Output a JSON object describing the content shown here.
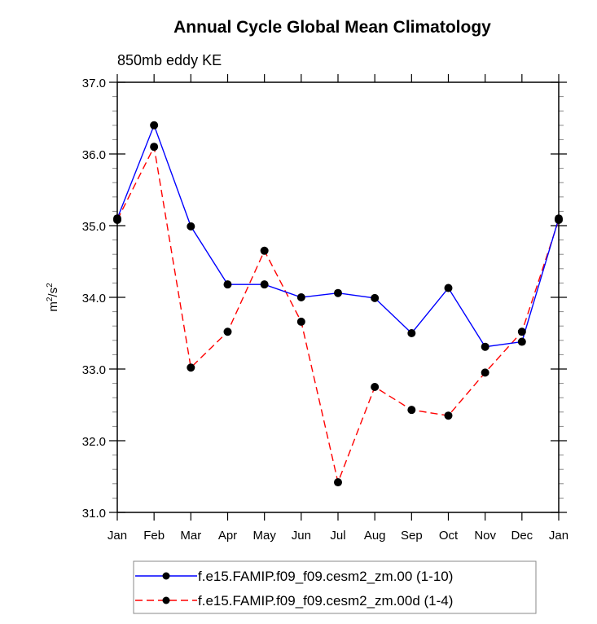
{
  "chart_data": {
    "type": "line",
    "title": "Annual Cycle Global Mean Climatology",
    "subtitle": "850mb eddy KE",
    "xlabel": "",
    "ylabel": "m2/s2",
    "ylabel_parts": {
      "base1": "m",
      "sup1": "2",
      "mid": "/s",
      "sup2": "2"
    },
    "categories": [
      "Jan",
      "Feb",
      "Mar",
      "Apr",
      "May",
      "Jun",
      "Jul",
      "Aug",
      "Sep",
      "Oct",
      "Nov",
      "Dec",
      "Jan"
    ],
    "ylim": [
      31.0,
      37.0
    ],
    "yticks": [
      "31.0",
      "32.0",
      "33.0",
      "34.0",
      "35.0",
      "36.0",
      "37.0"
    ],
    "grid": false,
    "legend_position": "bottom",
    "series": [
      {
        "name": "f.e15.FAMIP.f09_f09.cesm2_zm.00 (1-10)",
        "color": "#0000ff",
        "dash": "solid",
        "values": [
          35.1,
          36.4,
          34.99,
          34.18,
          34.18,
          34.0,
          34.06,
          33.99,
          33.5,
          34.13,
          33.31,
          33.38,
          35.1
        ]
      },
      {
        "name": "f.e15.FAMIP.f09_f09.cesm2_zm.00d (1-4)",
        "color": "#ff0000",
        "dash": "dashed",
        "values": [
          35.08,
          36.1,
          33.02,
          33.52,
          34.65,
          33.66,
          31.42,
          32.75,
          32.43,
          32.35,
          32.95,
          33.52,
          35.08
        ]
      }
    ]
  }
}
